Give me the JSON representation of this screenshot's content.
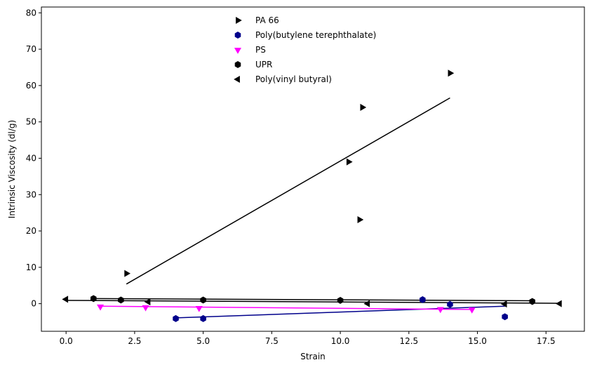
{
  "chart_data": {
    "type": "scatter",
    "xlabel": "Strain",
    "ylabel": "Intrinsic Viscosity (dl/g)",
    "xlim": [
      -0.9,
      18.9
    ],
    "ylim": [
      -7.6,
      81.6
    ],
    "xticks": [
      0.0,
      2.5,
      5.0,
      7.5,
      10.0,
      12.5,
      15.0,
      17.5
    ],
    "xtick_labels": [
      "0.0",
      "2.5",
      "5.0",
      "7.5",
      "10.0",
      "12.5",
      "15.0",
      "17.5"
    ],
    "yticks": [
      0,
      10,
      20,
      30,
      40,
      50,
      60,
      70,
      80
    ],
    "ytick_labels": [
      "0",
      "10",
      "20",
      "30",
      "40",
      "50",
      "60",
      "70",
      "80"
    ],
    "grid": false,
    "legend": "upper-center",
    "series": [
      {
        "name": "PA 66",
        "marker": "triangle-right",
        "color": "#000000",
        "points": [
          [
            2.2,
            8.3
          ],
          [
            10.3,
            39.0
          ],
          [
            10.8,
            54.0
          ],
          [
            10.7,
            23.1
          ],
          [
            14.0,
            63.4
          ]
        ],
        "fit": [
          [
            2.2,
            5.4
          ],
          [
            14.0,
            56.6
          ]
        ]
      },
      {
        "name": "Poly(butylene terephthalate)",
        "marker": "hexagon",
        "color": "#00008b",
        "points": [
          [
            4.0,
            -4.1
          ],
          [
            5.0,
            -4.1
          ],
          [
            13.0,
            1.1
          ],
          [
            14.0,
            -0.2
          ],
          [
            16.0,
            -3.6
          ]
        ],
        "fit": [
          [
            4.0,
            -3.9
          ],
          [
            16.0,
            -0.7
          ]
        ]
      },
      {
        "name": "PS",
        "marker": "triangle-down",
        "color": "#ff00ff",
        "points": [
          [
            1.25,
            -0.8
          ],
          [
            2.9,
            -1.0
          ],
          [
            4.85,
            -1.2
          ],
          [
            13.65,
            -1.5
          ],
          [
            14.8,
            -1.6
          ]
        ],
        "fit": [
          [
            1.25,
            -0.7
          ],
          [
            14.8,
            -1.6
          ]
        ]
      },
      {
        "name": "UPR",
        "marker": "hexagon",
        "color": "#000000",
        "points": [
          [
            1.0,
            1.4
          ],
          [
            2.0,
            1.0
          ],
          [
            5.0,
            1.0
          ],
          [
            10.0,
            0.9
          ],
          [
            17.0,
            0.6
          ]
        ],
        "fit": [
          [
            1.0,
            1.4
          ],
          [
            17.0,
            0.8
          ]
        ]
      },
      {
        "name": "Poly(vinyl butyral)",
        "marker": "triangle-left",
        "color": "#000000",
        "points": [
          [
            0.0,
            1.2
          ],
          [
            3.0,
            0.5
          ],
          [
            11.0,
            0.0
          ],
          [
            16.0,
            -0.1
          ],
          [
            18.0,
            0.0
          ]
        ],
        "fit": [
          [
            0.0,
            0.9
          ],
          [
            18.0,
            0.1
          ]
        ]
      }
    ]
  }
}
